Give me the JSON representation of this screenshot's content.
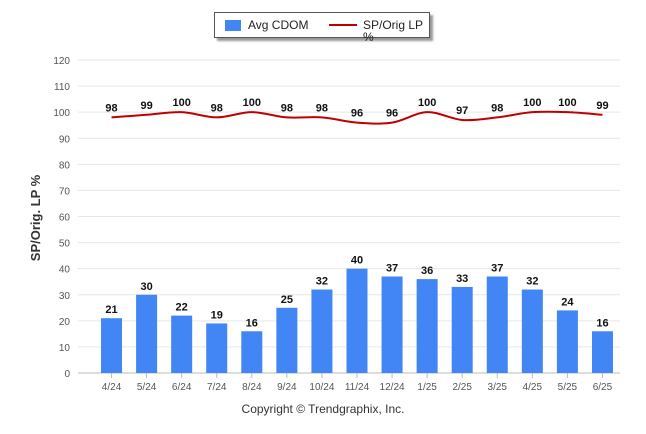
{
  "legend": {
    "bar_label": "Avg CDOM",
    "line_label": "SP/Orig LP %"
  },
  "copyright": "Copyright © Trendgraphix, Inc.",
  "chart_data": {
    "type": "bar",
    "ylabel": "SP/Orig. LP %",
    "xlabel": "",
    "title": "",
    "ylim": [
      0,
      120
    ],
    "yticks": [
      0,
      10,
      20,
      30,
      40,
      50,
      60,
      70,
      80,
      90,
      100,
      110,
      120
    ],
    "grid": true,
    "legend_position": "top-center",
    "categories": [
      "4/24",
      "5/24",
      "6/24",
      "7/24",
      "8/24",
      "9/24",
      "10/24",
      "11/24",
      "12/24",
      "1/25",
      "2/25",
      "3/25",
      "4/25",
      "5/25",
      "6/25"
    ],
    "series": [
      {
        "name": "Avg CDOM",
        "type": "bar",
        "color": "#4285f4",
        "values": [
          21,
          30,
          22,
          19,
          16,
          25,
          32,
          40,
          37,
          36,
          33,
          37,
          32,
          24,
          16
        ]
      },
      {
        "name": "SP/Orig LP %",
        "type": "line",
        "color": "#c00000",
        "values": [
          98,
          99,
          100,
          98,
          100,
          98,
          98,
          96,
          96,
          100,
          97,
          98,
          100,
          100,
          99
        ]
      }
    ]
  }
}
